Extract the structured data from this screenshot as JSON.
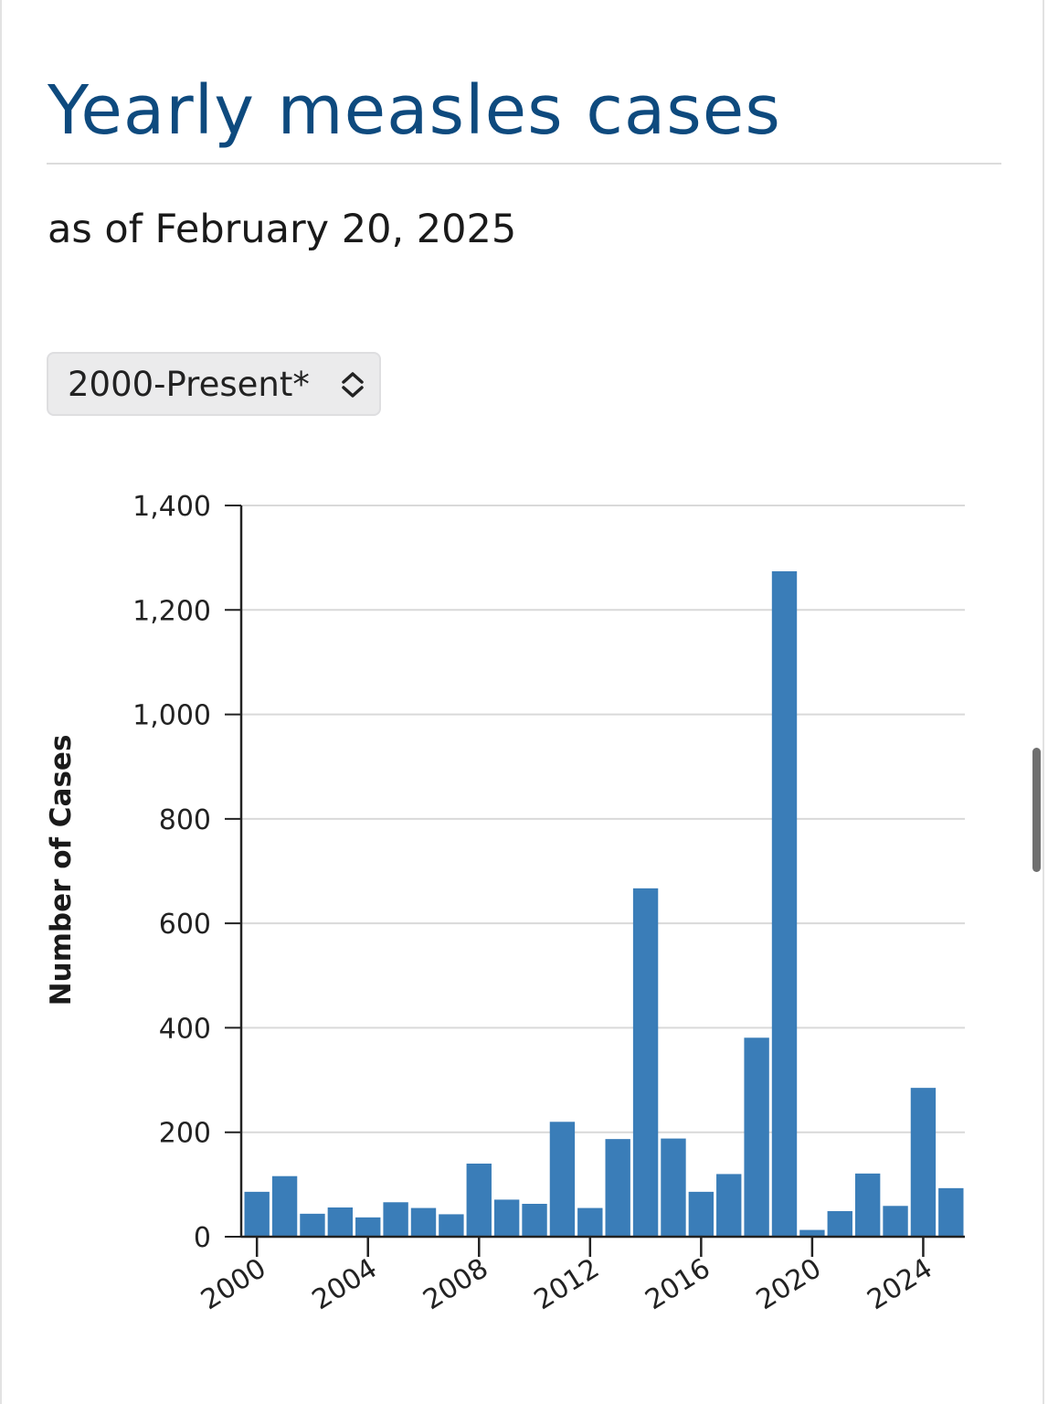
{
  "header": {
    "title": "Yearly measles cases",
    "subtitle": "as of February 20, 2025"
  },
  "range_select": {
    "value": "2000-Present*",
    "icon": "chevron-up-down-icon"
  },
  "colors": {
    "title": "#0e4a7e",
    "bar": "#3a7db8",
    "gridline": "#d9d9d9",
    "axis": "#222222"
  },
  "chart_data": {
    "type": "bar",
    "title": "",
    "xlabel": "",
    "ylabel": "Number of Cases",
    "ylim": [
      0,
      1400
    ],
    "y_ticks": [
      0,
      200,
      400,
      600,
      800,
      1000,
      1200,
      1400
    ],
    "y_tick_labels": [
      "0",
      "200",
      "400",
      "600",
      "800",
      "1,000",
      "1,200",
      "1,400"
    ],
    "x_tick_labels": [
      "2000",
      "2004",
      "2008",
      "2012",
      "2016",
      "2020",
      "2024"
    ],
    "grid": true,
    "legend": "none",
    "categories": [
      "2000",
      "2001",
      "2002",
      "2003",
      "2004",
      "2005",
      "2006",
      "2007",
      "2008",
      "2009",
      "2010",
      "2011",
      "2012",
      "2013",
      "2014",
      "2015",
      "2016",
      "2017",
      "2018",
      "2019",
      "2020",
      "2021",
      "2022",
      "2023",
      "2024",
      "2025"
    ],
    "values": [
      86,
      116,
      44,
      56,
      37,
      66,
      55,
      43,
      140,
      71,
      63,
      220,
      55,
      187,
      667,
      188,
      86,
      120,
      381,
      1274,
      13,
      49,
      121,
      59,
      285,
      93
    ]
  }
}
